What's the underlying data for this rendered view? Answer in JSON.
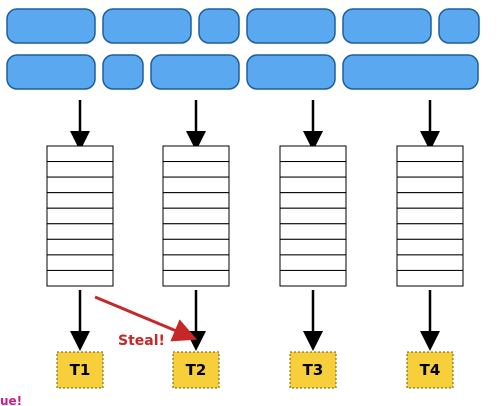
{
  "colors": {
    "task_fill": "#5aa8f0",
    "task_stroke": "#1f5f9c",
    "queue_stroke": "#000000",
    "arrow": "#000000",
    "thread_fill": "#f7cf3a",
    "thread_stroke": "#6b5a10",
    "steal_arrow": "#c62828",
    "steal_text": "#c62828",
    "corner_text": "#d01b8b"
  },
  "icons": {
    "task": "rounded-rectangle",
    "queue": "stacked-slots",
    "arrow": "down-arrow",
    "steal": "diagonal-arrow"
  },
  "diagram": {
    "task_rows": [
      {
        "widths": [
          88,
          88,
          40,
          88,
          88,
          40
        ]
      },
      {
        "widths": [
          88,
          40,
          88,
          88,
          135
        ]
      }
    ],
    "queues": [
      {
        "slots": 9
      },
      {
        "slots": 9
      },
      {
        "slots": 9
      },
      {
        "slots": 9
      }
    ],
    "threads": [
      {
        "label": "T1"
      },
      {
        "label": "T2"
      },
      {
        "label": "T3"
      },
      {
        "label": "T4"
      }
    ],
    "steal": {
      "label": "Steal!",
      "from": 0,
      "to": 1
    },
    "corner_label": "ue!"
  }
}
